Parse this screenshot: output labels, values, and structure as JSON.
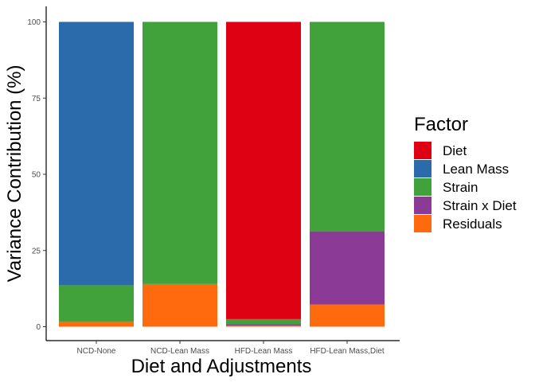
{
  "chart_data": {
    "type": "bar",
    "stacked": true,
    "xlabel": "Diet and Adjustments",
    "ylabel": "Variance Contribution (%)",
    "ylim": [
      0,
      100
    ],
    "yticks": [
      "0",
      "25",
      "50",
      "75",
      "100"
    ],
    "categories": [
      "NCD-None",
      "NCD-Lean Mass",
      "HFD-Lean Mass",
      "HFD-Lean Mass,Diet"
    ],
    "legend_title": "Factor",
    "legend_position": "right",
    "grid": false,
    "series": [
      {
        "name": "Residuals",
        "color": "#FF6A0E",
        "values": [
          1.6,
          14.0,
          0.4,
          7.3
        ]
      },
      {
        "name": "Strain x Diet",
        "color": "#8B3A96",
        "values": [
          0,
          0,
          0.4,
          24.0
        ]
      },
      {
        "name": "Strain",
        "color": "#41A13A",
        "values": [
          12.0,
          86.0,
          1.7,
          68.7
        ]
      },
      {
        "name": "Lean Mass",
        "color": "#2C6BAB",
        "values": [
          86.4,
          0,
          0,
          0
        ]
      },
      {
        "name": "Diet",
        "color": "#DE0013",
        "values": [
          0,
          0,
          97.5,
          0
        ]
      }
    ],
    "legend_order": [
      "Diet",
      "Lean Mass",
      "Strain",
      "Strain x Diet",
      "Residuals"
    ]
  }
}
